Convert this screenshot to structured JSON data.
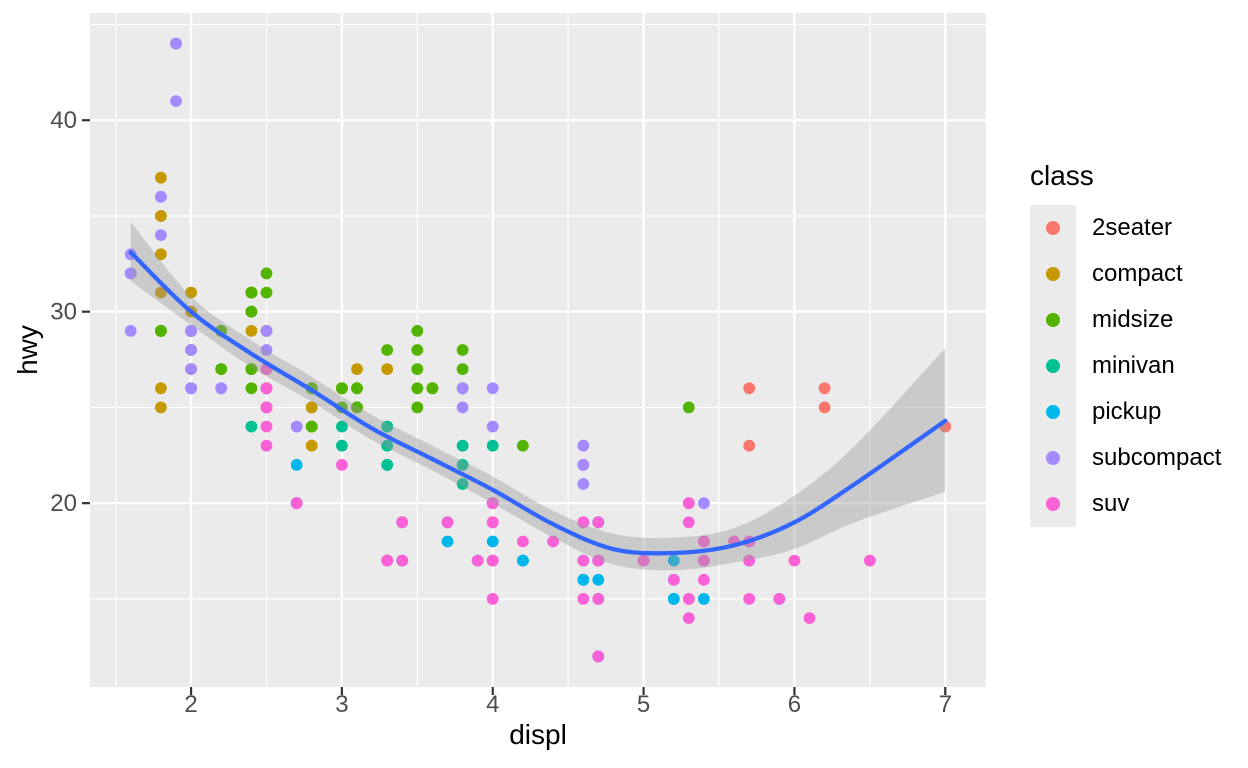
{
  "chart_data": {
    "type": "scatter",
    "xlabel": "displ",
    "ylabel": "hwy",
    "legend_title": "class",
    "legend_position": "right",
    "x_ticks": [
      2,
      3,
      4,
      5,
      6,
      7
    ],
    "y_ticks": [
      20,
      30,
      40
    ],
    "x_minor_ticks": [
      1.5,
      2.5,
      3.5,
      4.5,
      5.5,
      6.5
    ],
    "y_minor_ticks": [
      15,
      25,
      35,
      45
    ],
    "xlim": [
      1.33,
      7.27
    ],
    "ylim": [
      10.4,
      45.6
    ],
    "grid": true,
    "panel_bg_color": "#EBEBEB",
    "grid_color": "#FFFFFF",
    "tick_mark_color": "#333333",
    "tick_label_color": "#4D4D4D",
    "axis_title_color": "#000000",
    "legend_key_bg_color": "#EBEBEB",
    "smooth": {
      "type": "loess",
      "line_color": "#3366FF",
      "ribbon_color": "#999999",
      "ribbon_opacity": 0.4,
      "x": [
        1.6,
        2.0,
        2.4,
        2.8,
        3.2,
        3.6,
        4.0,
        4.4,
        4.8,
        5.2,
        5.6,
        6.0,
        6.4,
        7.0
      ],
      "fit": [
        33.1,
        30.0,
        27.8,
        25.9,
        23.9,
        22.3,
        20.7,
        18.9,
        17.6,
        17.4,
        17.8,
        19.0,
        21.0,
        24.3
      ],
      "lower": [
        31.6,
        29.3,
        27.1,
        25.3,
        23.3,
        21.7,
        20.0,
        18.2,
        16.8,
        16.5,
        16.9,
        17.6,
        19.0,
        20.6
      ],
      "upper": [
        34.7,
        30.8,
        28.5,
        26.6,
        24.6,
        23.0,
        21.4,
        19.6,
        18.4,
        18.2,
        18.7,
        20.4,
        23.0,
        28.1
      ]
    },
    "series": [
      {
        "name": "2seater",
        "color": "#F8766D",
        "points": [
          [
            5.7,
            26
          ],
          [
            5.7,
            23
          ],
          [
            6.2,
            26
          ],
          [
            6.2,
            25
          ],
          [
            7.0,
            24
          ]
        ]
      },
      {
        "name": "compact",
        "color": "#C49A00",
        "points": [
          [
            1.8,
            29
          ],
          [
            1.8,
            29
          ],
          [
            2.0,
            31
          ],
          [
            2.0,
            30
          ],
          [
            2.8,
            26
          ],
          [
            2.8,
            26
          ],
          [
            3.1,
            27
          ],
          [
            1.8,
            26
          ],
          [
            1.8,
            25
          ],
          [
            2.0,
            28
          ],
          [
            2.0,
            27
          ],
          [
            2.8,
            25
          ],
          [
            2.8,
            25
          ],
          [
            3.1,
            25
          ],
          [
            3.1,
            25
          ],
          [
            2.4,
            29
          ],
          [
            2.4,
            27
          ],
          [
            2.5,
            27
          ],
          [
            2.5,
            25
          ],
          [
            2.5,
            27
          ],
          [
            2.5,
            26
          ],
          [
            2.2,
            29
          ],
          [
            2.2,
            27
          ],
          [
            2.4,
            31
          ],
          [
            2.4,
            31
          ],
          [
            3.0,
            26
          ],
          [
            3.3,
            27
          ],
          [
            1.8,
            31
          ],
          [
            1.8,
            33
          ],
          [
            1.8,
            35
          ],
          [
            1.8,
            37
          ],
          [
            1.8,
            35
          ],
          [
            2.0,
            29
          ],
          [
            2.0,
            26
          ],
          [
            2.0,
            29
          ],
          [
            2.0,
            29
          ],
          [
            2.8,
            24
          ],
          [
            1.9,
            44
          ],
          [
            2.0,
            29
          ],
          [
            2.0,
            26
          ],
          [
            2.0,
            29
          ],
          [
            2.0,
            29
          ],
          [
            2.5,
            29
          ],
          [
            2.5,
            29
          ],
          [
            2.8,
            23
          ],
          [
            2.8,
            24
          ]
        ]
      },
      {
        "name": "midsize",
        "color": "#53B400",
        "points": [
          [
            2.8,
            24
          ],
          [
            3.1,
            25
          ],
          [
            4.2,
            23
          ],
          [
            2.4,
            27
          ],
          [
            2.4,
            30
          ],
          [
            3.1,
            26
          ],
          [
            3.5,
            29
          ],
          [
            3.6,
            26
          ],
          [
            2.4,
            26
          ],
          [
            2.4,
            27
          ],
          [
            2.4,
            30
          ],
          [
            2.4,
            31
          ],
          [
            2.5,
            26
          ],
          [
            2.5,
            26
          ],
          [
            3.3,
            28
          ],
          [
            2.5,
            31
          ],
          [
            2.5,
            32
          ],
          [
            3.5,
            27
          ],
          [
            3.5,
            26
          ],
          [
            3.0,
            26
          ],
          [
            3.0,
            25
          ],
          [
            3.5,
            25
          ],
          [
            3.1,
            26
          ],
          [
            3.8,
            26
          ],
          [
            3.8,
            27
          ],
          [
            3.8,
            28
          ],
          [
            5.3,
            25
          ],
          [
            2.2,
            29
          ],
          [
            2.2,
            27
          ],
          [
            2.4,
            31
          ],
          [
            2.4,
            31
          ],
          [
            3.0,
            26
          ],
          [
            3.0,
            26
          ],
          [
            3.5,
            28
          ],
          [
            1.8,
            29
          ],
          [
            1.8,
            29
          ],
          [
            2.0,
            28
          ],
          [
            2.0,
            29
          ],
          [
            2.8,
            26
          ],
          [
            2.8,
            26
          ],
          [
            3.6,
            26
          ]
        ]
      },
      {
        "name": "minivan",
        "color": "#00C094",
        "points": [
          [
            2.4,
            24
          ],
          [
            3.0,
            24
          ],
          [
            3.3,
            22
          ],
          [
            3.3,
            22
          ],
          [
            3.3,
            24
          ],
          [
            3.3,
            24
          ],
          [
            3.3,
            17
          ],
          [
            3.8,
            22
          ],
          [
            3.8,
            21
          ],
          [
            3.8,
            23
          ],
          [
            4.0,
            23
          ],
          [
            3.0,
            23
          ],
          [
            3.3,
            23
          ]
        ]
      },
      {
        "name": "pickup",
        "color": "#00B6EB",
        "points": [
          [
            3.7,
            19
          ],
          [
            3.7,
            18
          ],
          [
            3.9,
            17
          ],
          [
            3.9,
            17
          ],
          [
            4.7,
            19
          ],
          [
            4.7,
            19
          ],
          [
            4.7,
            12
          ],
          [
            5.2,
            17
          ],
          [
            5.2,
            15
          ],
          [
            4.7,
            17
          ],
          [
            4.7,
            15
          ],
          [
            4.7,
            17
          ],
          [
            4.7,
            12
          ],
          [
            4.7,
            17
          ],
          [
            4.7,
            16
          ],
          [
            5.2,
            15
          ],
          [
            5.2,
            16
          ],
          [
            5.7,
            17
          ],
          [
            5.9,
            15
          ],
          [
            4.2,
            17
          ],
          [
            4.2,
            17
          ],
          [
            4.6,
            16
          ],
          [
            4.6,
            16
          ],
          [
            4.6,
            17
          ],
          [
            5.4,
            15
          ],
          [
            5.4,
            17
          ],
          [
            2.7,
            20
          ],
          [
            2.7,
            20
          ],
          [
            2.7,
            22
          ],
          [
            3.4,
            17
          ],
          [
            3.4,
            19
          ],
          [
            4.0,
            18
          ],
          [
            4.0,
            20
          ]
        ]
      },
      {
        "name": "subcompact",
        "color": "#A58AFF",
        "points": [
          [
            3.8,
            26
          ],
          [
            3.8,
            25
          ],
          [
            4.0,
            26
          ],
          [
            4.0,
            24
          ],
          [
            4.6,
            23
          ],
          [
            4.6,
            22
          ],
          [
            4.6,
            21
          ],
          [
            4.6,
            22
          ],
          [
            5.4,
            20
          ],
          [
            1.6,
            33
          ],
          [
            1.6,
            32
          ],
          [
            1.6,
            32
          ],
          [
            1.6,
            29
          ],
          [
            1.6,
            32
          ],
          [
            1.8,
            34
          ],
          [
            1.8,
            36
          ],
          [
            1.8,
            36
          ],
          [
            2.0,
            29
          ],
          [
            2.0,
            26
          ],
          [
            2.0,
            29
          ],
          [
            2.0,
            28
          ],
          [
            2.0,
            27
          ],
          [
            2.7,
            24
          ],
          [
            2.7,
            24
          ],
          [
            2.2,
            26
          ],
          [
            2.2,
            26
          ],
          [
            2.5,
            26
          ],
          [
            2.5,
            25
          ],
          [
            1.9,
            44
          ],
          [
            1.9,
            41
          ],
          [
            2.0,
            29
          ],
          [
            2.0,
            26
          ],
          [
            2.5,
            28
          ],
          [
            2.5,
            29
          ]
        ]
      },
      {
        "name": "suv",
        "color": "#FB61D7",
        "points": [
          [
            5.3,
            20
          ],
          [
            5.3,
            15
          ],
          [
            5.3,
            20
          ],
          [
            5.7,
            17
          ],
          [
            6.0,
            17
          ],
          [
            5.3,
            19
          ],
          [
            5.3,
            14
          ],
          [
            5.7,
            15
          ],
          [
            6.5,
            17
          ],
          [
            3.9,
            17
          ],
          [
            4.7,
            17
          ],
          [
            4.7,
            12
          ],
          [
            4.7,
            17
          ],
          [
            5.2,
            16
          ],
          [
            5.7,
            18
          ],
          [
            5.9,
            15
          ],
          [
            4.6,
            17
          ],
          [
            5.4,
            17
          ],
          [
            5.4,
            18
          ],
          [
            4.0,
            17
          ],
          [
            4.0,
            19
          ],
          [
            4.0,
            17
          ],
          [
            4.0,
            19
          ],
          [
            4.6,
            19
          ],
          [
            5.0,
            17
          ],
          [
            3.0,
            22
          ],
          [
            3.7,
            19
          ],
          [
            4.0,
            20
          ],
          [
            4.7,
            17
          ],
          [
            4.7,
            12
          ],
          [
            4.7,
            19
          ],
          [
            5.7,
            18
          ],
          [
            6.1,
            14
          ],
          [
            4.0,
            15
          ],
          [
            4.2,
            18
          ],
          [
            4.4,
            18
          ],
          [
            4.6,
            15
          ],
          [
            5.4,
            17
          ],
          [
            5.4,
            16
          ],
          [
            5.4,
            18
          ],
          [
            4.0,
            17
          ],
          [
            4.0,
            19
          ],
          [
            4.6,
            19
          ],
          [
            5.0,
            17
          ],
          [
            3.3,
            17
          ],
          [
            3.3,
            17
          ],
          [
            4.0,
            20
          ],
          [
            5.6,
            18
          ],
          [
            2.5,
            25
          ],
          [
            2.5,
            24
          ],
          [
            2.5,
            27
          ],
          [
            2.5,
            25
          ],
          [
            2.5,
            26
          ],
          [
            2.5,
            23
          ],
          [
            2.7,
            20
          ],
          [
            2.7,
            20
          ],
          [
            3.4,
            19
          ],
          [
            3.4,
            17
          ],
          [
            4.0,
            20
          ],
          [
            4.7,
            17
          ],
          [
            4.7,
            15
          ],
          [
            5.7,
            18
          ]
        ]
      }
    ]
  }
}
